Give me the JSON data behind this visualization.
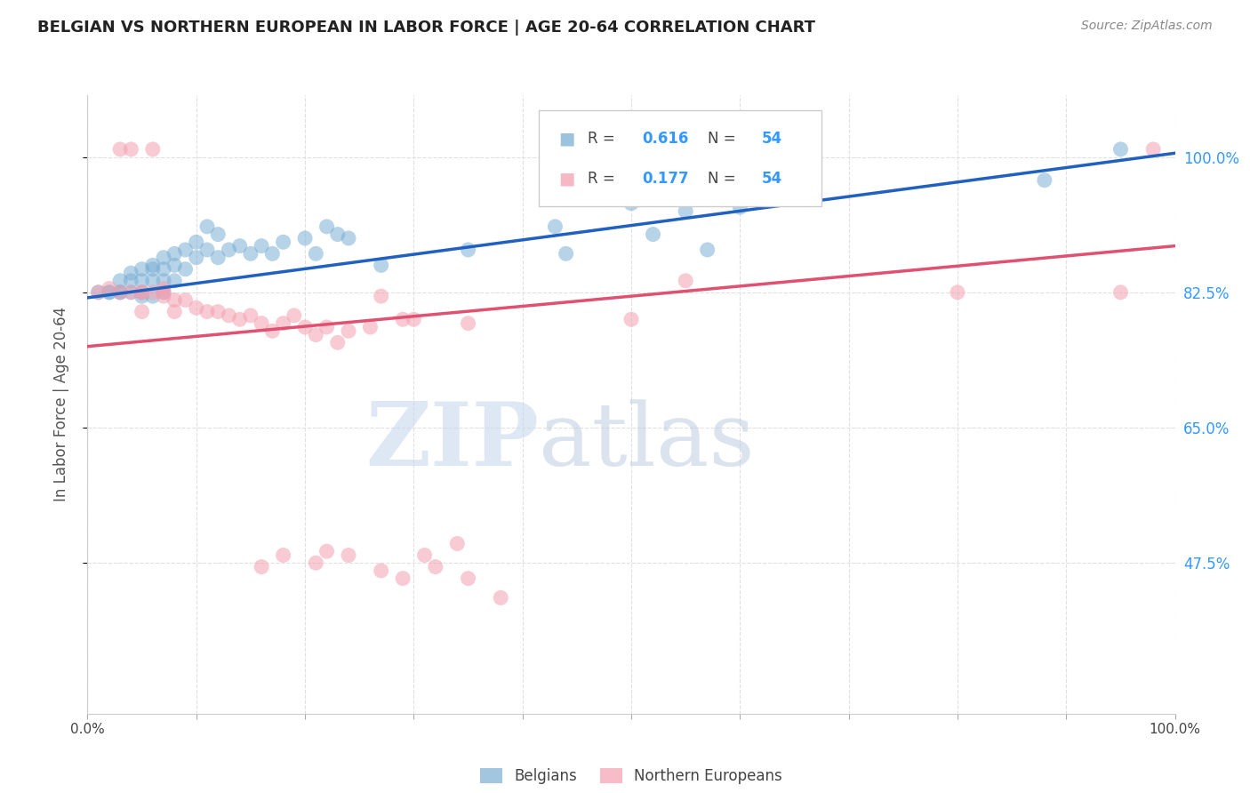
{
  "title": "BELGIAN VS NORTHERN EUROPEAN IN LABOR FORCE | AGE 20-64 CORRELATION CHART",
  "source": "Source: ZipAtlas.com",
  "ylabel": "In Labor Force | Age 20-64",
  "xlim": [
    0.0,
    1.0
  ],
  "ylim": [
    0.28,
    1.08
  ],
  "yticks": [
    0.475,
    0.65,
    0.825,
    1.0
  ],
  "ytick_labels": [
    "47.5%",
    "65.0%",
    "82.5%",
    "100.0%"
  ],
  "xticks": [
    0.0,
    0.1,
    0.2,
    0.3,
    0.4,
    0.5,
    0.6,
    0.7,
    0.8,
    0.9,
    1.0
  ],
  "xtick_labels": [
    "0.0%",
    "",
    "",
    "",
    "",
    "",
    "",
    "",
    "",
    "",
    "100.0%"
  ],
  "blue_R": 0.616,
  "blue_N": 54,
  "pink_R": 0.177,
  "pink_N": 54,
  "blue_color": "#7bafd4",
  "pink_color": "#f4a0b0",
  "blue_line_color": "#2060c0",
  "pink_line_color": "#e05070",
  "blue_scatter_x": [
    0.01,
    0.02,
    0.02,
    0.03,
    0.03,
    0.03,
    0.04,
    0.04,
    0.04,
    0.05,
    0.05,
    0.05,
    0.05,
    0.06,
    0.06,
    0.06,
    0.06,
    0.07,
    0.07,
    0.07,
    0.07,
    0.08,
    0.08,
    0.08,
    0.09,
    0.09,
    0.1,
    0.1,
    0.11,
    0.11,
    0.12,
    0.12,
    0.13,
    0.14,
    0.15,
    0.16,
    0.17,
    0.18,
    0.2,
    0.21,
    0.22,
    0.23,
    0.24,
    0.27,
    0.35,
    0.43,
    0.44,
    0.5,
    0.52,
    0.55,
    0.57,
    0.6,
    0.88,
    0.95
  ],
  "blue_scatter_y": [
    0.825,
    0.825,
    0.825,
    0.825,
    0.84,
    0.825,
    0.84,
    0.85,
    0.825,
    0.855,
    0.84,
    0.825,
    0.82,
    0.855,
    0.86,
    0.84,
    0.82,
    0.87,
    0.855,
    0.84,
    0.825,
    0.875,
    0.86,
    0.84,
    0.88,
    0.855,
    0.89,
    0.87,
    0.91,
    0.88,
    0.9,
    0.87,
    0.88,
    0.885,
    0.875,
    0.885,
    0.875,
    0.89,
    0.895,
    0.875,
    0.91,
    0.9,
    0.895,
    0.86,
    0.88,
    0.91,
    0.875,
    0.94,
    0.9,
    0.93,
    0.88,
    0.935,
    0.97,
    1.01
  ],
  "pink_scatter_x": [
    0.01,
    0.02,
    0.03,
    0.03,
    0.04,
    0.04,
    0.05,
    0.05,
    0.05,
    0.06,
    0.06,
    0.07,
    0.07,
    0.07,
    0.08,
    0.08,
    0.09,
    0.1,
    0.11,
    0.12,
    0.13,
    0.14,
    0.15,
    0.16,
    0.17,
    0.18,
    0.19,
    0.2,
    0.21,
    0.22,
    0.23,
    0.24,
    0.26,
    0.27,
    0.29,
    0.3,
    0.35,
    0.5,
    0.55,
    0.8,
    0.95,
    0.98,
    0.16,
    0.18,
    0.21,
    0.22,
    0.24,
    0.27,
    0.29,
    0.31,
    0.32,
    0.34,
    0.35,
    0.38
  ],
  "pink_scatter_y": [
    0.825,
    0.83,
    0.825,
    1.01,
    0.825,
    1.01,
    0.825,
    0.825,
    0.8,
    0.825,
    1.01,
    0.83,
    0.825,
    0.82,
    0.815,
    0.8,
    0.815,
    0.805,
    0.8,
    0.8,
    0.795,
    0.79,
    0.795,
    0.785,
    0.775,
    0.785,
    0.795,
    0.78,
    0.77,
    0.78,
    0.76,
    0.775,
    0.78,
    0.82,
    0.79,
    0.79,
    0.785,
    0.79,
    0.84,
    0.825,
    0.825,
    1.01,
    0.47,
    0.485,
    0.475,
    0.49,
    0.485,
    0.465,
    0.455,
    0.485,
    0.47,
    0.5,
    0.455,
    0.43
  ],
  "blue_line_x0": 0.0,
  "blue_line_x1": 1.0,
  "blue_line_y0": 0.818,
  "blue_line_y1": 1.005,
  "pink_line_x0": 0.0,
  "pink_line_x1": 1.0,
  "pink_line_y0": 0.755,
  "pink_line_y1": 0.885,
  "watermark_zip": "ZIP",
  "watermark_atlas": "atlas",
  "legend_entries": [
    "Belgians",
    "Northern Europeans"
  ],
  "background_color": "#ffffff",
  "grid_color": "#e0e0e0"
}
